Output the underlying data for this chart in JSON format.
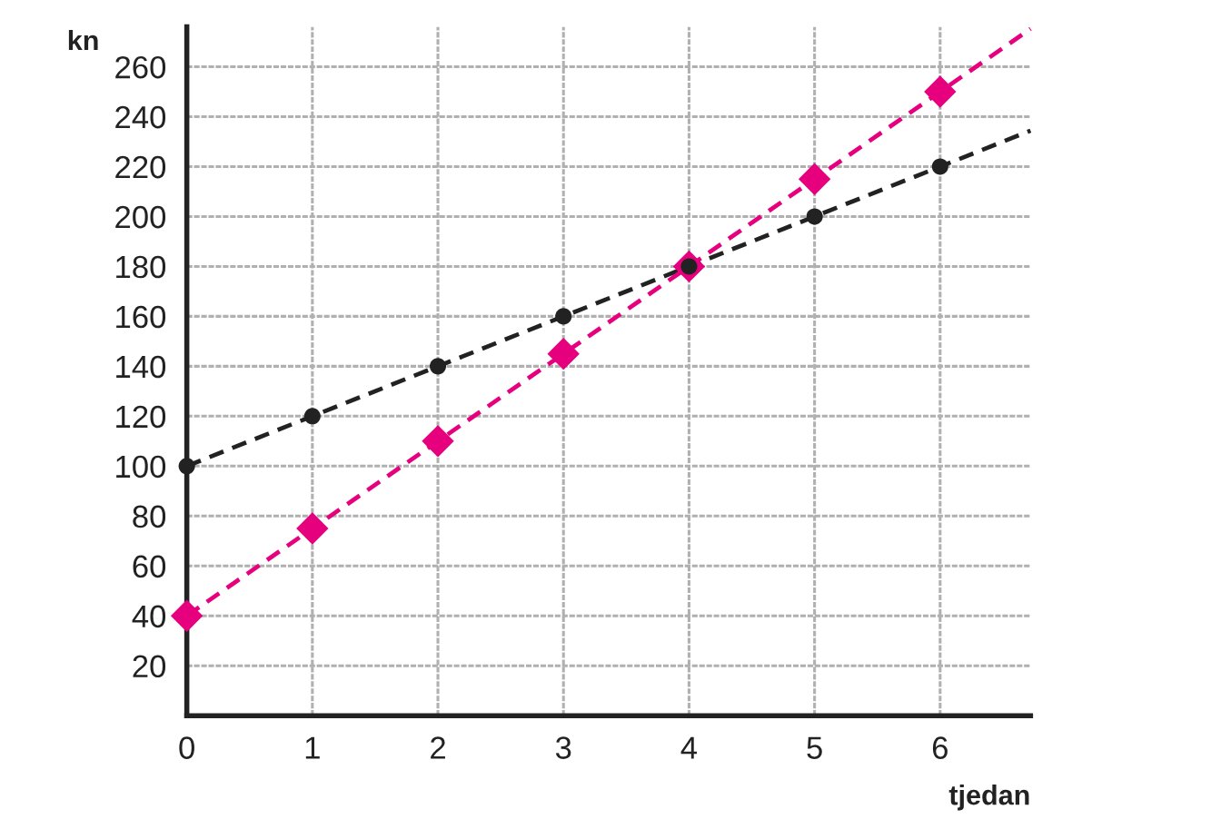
{
  "chart_data": {
    "type": "line",
    "xlabel": "tjedan",
    "ylabel": "kn",
    "xlim": [
      0,
      6.72
    ],
    "ylim": [
      0,
      276
    ],
    "xticks": [
      0,
      1,
      2,
      3,
      4,
      5,
      6
    ],
    "yticks": [
      20,
      40,
      60,
      80,
      100,
      120,
      140,
      160,
      180,
      200,
      220,
      240,
      260
    ],
    "grid": true,
    "series": [
      {
        "color": "#222222",
        "marker": "none",
        "line_style": "dashed",
        "x": [
          0,
          6.72
        ],
        "values": [
          100,
          234.4
        ]
      },
      {
        "color": "#e6007e",
        "marker": "none",
        "line_style": "dashed",
        "x": [
          0,
          6.72
        ],
        "values": [
          40,
          275.2
        ]
      },
      {
        "type": "scatter",
        "color": "#e6007e",
        "marker": "diamond",
        "x": [
          0,
          1,
          2,
          3,
          4,
          5,
          6
        ],
        "values": [
          40,
          75,
          110,
          145,
          180,
          215,
          250
        ]
      },
      {
        "type": "scatter",
        "color": "#222222",
        "marker": "circle",
        "x": [
          0,
          1,
          2,
          3,
          4,
          5,
          6
        ],
        "values": [
          100,
          120,
          140,
          160,
          180,
          200,
          220
        ]
      }
    ]
  }
}
